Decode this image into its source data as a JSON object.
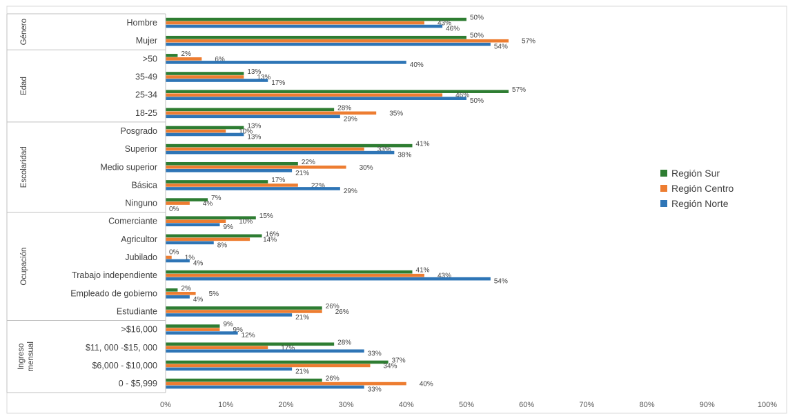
{
  "chart_data": {
    "type": "bar",
    "orientation": "horizontal",
    "xlim": [
      0,
      100
    ],
    "x_ticks": [
      "0%",
      "10%",
      "20%",
      "30%",
      "40%",
      "50%",
      "60%",
      "70%",
      "80%",
      "90%",
      "100%"
    ],
    "legend_position": "right",
    "series": [
      {
        "name": "Región Sur",
        "color": "#2e7d32"
      },
      {
        "name": "Región Centro",
        "color": "#ed7d31"
      },
      {
        "name": "Región Norte",
        "color": "#2e75b6"
      }
    ],
    "groups": [
      {
        "label": "Género",
        "categories": [
          {
            "label": "Hombre",
            "values": [
              50,
              43,
              46
            ]
          },
          {
            "label": "Mujer",
            "values": [
              50,
              57,
              54
            ]
          }
        ]
      },
      {
        "label": "Edad",
        "categories": [
          {
            "label": ">50",
            "values": [
              2,
              6,
              40
            ]
          },
          {
            "label": "35-49",
            "values": [
              13,
              13,
              17
            ]
          },
          {
            "label": "25-34",
            "values": [
              57,
              46,
              50
            ]
          },
          {
            "label": "18-25",
            "values": [
              28,
              35,
              29
            ]
          }
        ]
      },
      {
        "label": "Escolaridad",
        "categories": [
          {
            "label": "Posgrado",
            "values": [
              13,
              10,
              13
            ]
          },
          {
            "label": "Superior",
            "values": [
              41,
              33,
              38
            ]
          },
          {
            "label": "Medio superior",
            "values": [
              22,
              30,
              21
            ]
          },
          {
            "label": "Básica",
            "values": [
              17,
              22,
              29
            ]
          },
          {
            "label": "Ninguno",
            "values": [
              7,
              4,
              0
            ]
          }
        ]
      },
      {
        "label": "Ocupación",
        "categories": [
          {
            "label": "Comerciante",
            "values": [
              15,
              10,
              9
            ]
          },
          {
            "label": "Agricultor",
            "values": [
              16,
              14,
              8
            ]
          },
          {
            "label": "Jubilado",
            "values": [
              0,
              1,
              4
            ]
          },
          {
            "label": "Trabajo independiente",
            "values": [
              41,
              43,
              54
            ]
          },
          {
            "label": "Empleado de gobierno",
            "values": [
              2,
              5,
              4
            ]
          },
          {
            "label": "Estudiante",
            "values": [
              26,
              26,
              21
            ]
          }
        ]
      },
      {
        "label": "Ingreso mensual",
        "categories": [
          {
            "label": ">$16,000",
            "values": [
              9,
              9,
              12
            ]
          },
          {
            "label": "$11, 000 -$15, 000",
            "values": [
              28,
              17,
              33
            ]
          },
          {
            "label": "$6,000 - $10,000",
            "values": [
              37,
              34,
              21
            ]
          },
          {
            "label": "0 - $5,999",
            "values": [
              26,
              40,
              33
            ]
          }
        ]
      }
    ]
  }
}
